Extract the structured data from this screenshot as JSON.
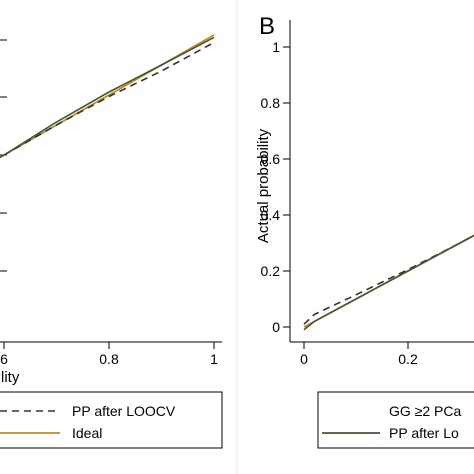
{
  "chart_data": [
    {
      "type": "line",
      "panel": "left",
      "xlabel": "lity",
      "xticks": [
        "6",
        "0.8",
        "1"
      ],
      "xlim": [
        0.58,
        1.0
      ],
      "ylim": [
        0.58,
        1.0
      ],
      "series": [
        {
          "name": "",
          "color": "#3f5a35",
          "style": "solid",
          "x": [
            0.58,
            0.6,
            0.7,
            0.8,
            0.9,
            1.0
          ],
          "y": [
            0.58,
            0.6,
            0.71,
            0.81,
            0.9,
            0.992
          ]
        },
        {
          "name": "PP after LOOCV",
          "color": "#333333",
          "style": "dashed",
          "x": [
            0.58,
            0.6,
            0.7,
            0.8,
            0.9,
            1.0
          ],
          "y": [
            0.58,
            0.6,
            0.7,
            0.795,
            0.88,
            0.975
          ]
        },
        {
          "name": "Ideal",
          "color": "#c98a22",
          "style": "solid",
          "x": [
            0.58,
            1.0
          ],
          "y": [
            0.58,
            1.0
          ]
        }
      ],
      "legend": {
        "position": "bottom"
      }
    },
    {
      "type": "line",
      "panel": "B",
      "ylabel": "Actual probability",
      "xticks": [
        "0",
        "0.2"
      ],
      "yticks": [
        "0",
        "0.2",
        "0.4",
        "0.6",
        "0.8",
        "1"
      ],
      "xlim": [
        0,
        0.6
      ],
      "ylim": [
        -0.07,
        1.07
      ],
      "series": [
        {
          "name": "PP after Lo",
          "color": "#3f5a35",
          "style": "solid",
          "x": [
            0.0,
            0.02,
            0.1,
            0.2,
            0.3,
            0.33
          ],
          "y": [
            -0.01,
            0.02,
            0.1,
            0.2,
            0.3,
            0.33
          ]
        },
        {
          "name": "",
          "color": "#333333",
          "style": "dashed",
          "x": [
            0.0,
            0.02,
            0.1,
            0.2,
            0.3,
            0.33
          ],
          "y": [
            0.01,
            0.045,
            0.115,
            0.205,
            0.3,
            0.33
          ]
        },
        {
          "name": "",
          "color": "#c98a22",
          "style": "solid",
          "x": [
            0.0,
            0.33
          ],
          "y": [
            0.0,
            0.33
          ]
        }
      ],
      "legend": {
        "position": "bottom",
        "entries": [
          "GG ≥2 PCa",
          "PP after Lo"
        ]
      }
    }
  ],
  "left_panel": {
    "legend": [
      {
        "label": "PP after LOOCV",
        "color": "#333333",
        "style": "dashed"
      },
      {
        "label": "Ideal",
        "color": "#c98a22",
        "style": "solid"
      }
    ],
    "xlabel": "lity"
  },
  "right_panel": {
    "letter": "B",
    "ylabel": "Actual probability",
    "legend": [
      {
        "label": "GG ≥2 PCa",
        "color": "",
        "style": "none"
      },
      {
        "label": "PP after Lo",
        "color": "#3f5a35",
        "style": "solid"
      }
    ]
  }
}
